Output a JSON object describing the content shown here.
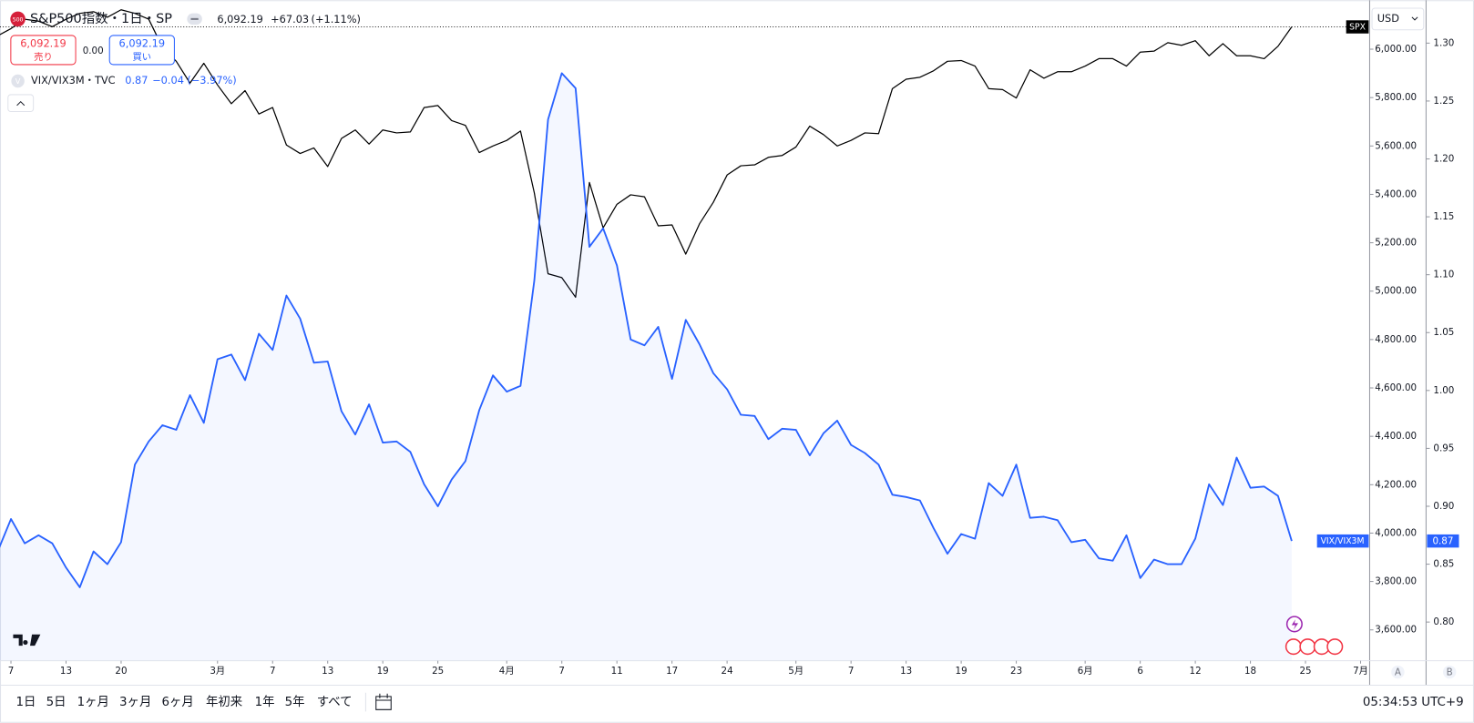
{
  "ui": {
    "icon": "500",
    "quote": "6,092.19",
    "change": "+67.03",
    "change_pct": "(+1.11%)",
    "sell_price": "6,092.19",
    "sell": "売り",
    "spread": "0.00",
    "buy_price": "6,092.19",
    "buy": "買い",
    "legend_symbol": "VIX/VIX3M・TVC",
    "legend_value": "0.87",
    "legend_change": "−0.04",
    "legend_change_pct": "(−3.97%)",
    "legend_icon": "V",
    "currency": "USD",
    "axis_a": "A",
    "axis_b": "B",
    "ranges": [
      "1日",
      "5日",
      "1ヶ月",
      "3ヶ月",
      "6ヶ月",
      "年初来",
      "1年",
      "5年",
      "すべて"
    ],
    "clock": "05:34:53 UTC+9"
  },
  "chart_data": {
    "type": "line",
    "title": "S&P500指数・1日・SP",
    "categories": [
      null,
      "7",
      null,
      null,
      null,
      "13",
      null,
      null,
      null,
      "20",
      null,
      null,
      null,
      null,
      null,
      null,
      "3月",
      null,
      null,
      null,
      "7",
      null,
      null,
      null,
      "13",
      null,
      null,
      null,
      "19",
      null,
      null,
      null,
      "25",
      null,
      null,
      null,
      null,
      "4月",
      null,
      null,
      null,
      "7",
      null,
      null,
      null,
      "11",
      null,
      null,
      null,
      "17",
      null,
      null,
      null,
      "24",
      null,
      null,
      null,
      null,
      "5月",
      null,
      null,
      null,
      "7",
      null,
      null,
      null,
      "13",
      null,
      null,
      null,
      "19",
      null,
      null,
      null,
      "23",
      null,
      null,
      null,
      null,
      "6月",
      null,
      null,
      null,
      "6",
      null,
      null,
      null,
      "12",
      null,
      null,
      null,
      "18",
      null,
      null,
      null,
      "25",
      null,
      null,
      null,
      "7月"
    ],
    "series": [
      {
        "name": "SPX",
        "color": "#000000",
        "axis": "y",
        "values": [
          6054,
          6085,
          6124,
          6116,
          6093,
          6124,
          6148,
          6155,
          6132,
          6163,
          6148,
          6124,
          6008,
          5950,
          5860,
          5942,
          5852,
          5775,
          5829,
          5732,
          5759,
          5604,
          5569,
          5592,
          5515,
          5631,
          5666,
          5608,
          5666,
          5654,
          5658,
          5759,
          5767,
          5705,
          5685,
          5573,
          5600,
          5623,
          5662,
          5406,
          5072,
          5056,
          4975,
          5449,
          5262,
          5359,
          5398,
          5390,
          5270,
          5274,
          5153,
          5278,
          5367,
          5480,
          5518,
          5522,
          5553,
          5561,
          5596,
          5682,
          5647,
          5600,
          5623,
          5654,
          5651,
          5837,
          5876,
          5884,
          5911,
          5950,
          5953,
          5930,
          5837,
          5833,
          5798,
          5915,
          5880,
          5907,
          5907,
          5930,
          5961,
          5961,
          5930,
          5988,
          5992,
          6027,
          6016,
          6035,
          5973,
          6023,
          5973,
          5973,
          5961,
          6012,
          6092.19,
          null,
          null,
          null,
          null,
          null
        ]
      },
      {
        "name": "VIX/VIX3M",
        "color": "#2962ff",
        "axis": "y2",
        "area_color": "rgba(41,98,255,0.05)",
        "values": [
          0.86,
          0.889,
          0.868,
          0.875,
          0.868,
          0.847,
          0.83,
          0.861,
          0.85,
          0.869,
          0.936,
          0.956,
          0.97,
          0.966,
          0.996,
          0.972,
          1.027,
          1.031,
          1.009,
          1.049,
          1.035,
          1.082,
          1.062,
          1.024,
          1.025,
          0.982,
          0.962,
          0.988,
          0.955,
          0.956,
          0.947,
          0.919,
          0.9,
          0.923,
          0.939,
          0.983,
          1.013,
          0.999,
          1.004,
          1.095,
          1.234,
          1.274,
          1.261,
          1.124,
          1.14,
          1.108,
          1.044,
          1.039,
          1.055,
          1.01,
          1.061,
          1.04,
          1.015,
          1.001,
          0.979,
          0.978,
          0.958,
          0.967,
          0.966,
          0.944,
          0.963,
          0.974,
          0.953,
          0.946,
          0.936,
          0.91,
          0.908,
          0.905,
          0.881,
          0.859,
          0.876,
          0.872,
          0.92,
          0.909,
          0.936,
          0.89,
          0.891,
          0.888,
          0.869,
          0.871,
          0.855,
          0.853,
          0.875,
          0.838,
          0.854,
          0.85,
          0.85,
          0.872,
          0.919,
          0.901,
          0.942,
          0.916,
          0.917,
          0.909,
          0.87,
          null,
          null,
          null,
          null,
          null
        ]
      }
    ],
    "ylim": [
      3484,
      6183
    ],
    "yticks": [
      {
        "value": 3600,
        "label": "3,600.00"
      },
      {
        "value": 3800,
        "label": "3,800.00"
      },
      {
        "value": 4000,
        "label": "4,000.00"
      },
      {
        "value": 4200,
        "label": "4,200.00"
      },
      {
        "value": 4400,
        "label": "4,400.00"
      },
      {
        "value": 4600,
        "label": "4,600.00"
      },
      {
        "value": 4800,
        "label": "4,800.00"
      },
      {
        "value": 5000,
        "label": "5,000.00"
      },
      {
        "value": 5200,
        "label": "5,200.00"
      },
      {
        "value": 5400,
        "label": "5,400.00"
      },
      {
        "value": 5600,
        "label": "5,600.00"
      },
      {
        "value": 5800,
        "label": "5,800.00"
      },
      {
        "value": 6000,
        "label": "6,000.00"
      }
    ],
    "y2lim": [
      0.769,
      1.333
    ],
    "y2ticks": [
      {
        "value": 0.8,
        "label": "0.80"
      },
      0.85,
      {
        "value": 0.9,
        "label": "0.90"
      },
      0.95,
      {
        "value": 1,
        "label": "1.00"
      },
      1.05,
      {
        "value": 1.1,
        "label": "1.10"
      },
      1.15,
      {
        "value": 1.2,
        "label": "1.20"
      },
      1.25,
      {
        "value": 1.3,
        "label": "1.30"
      }
    ],
    "grid": false
  }
}
